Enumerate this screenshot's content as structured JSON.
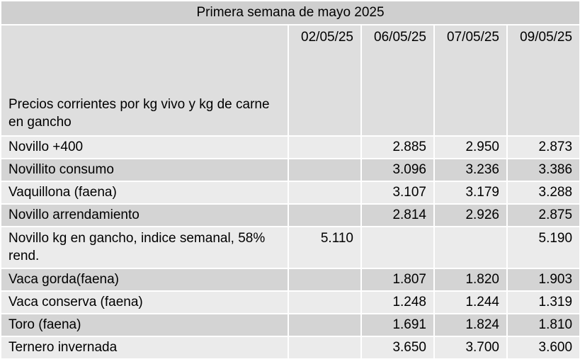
{
  "table": {
    "title": "Primera semana de mayo 2025",
    "header_label": "Precios corrientes  por kg vivo y kg de carne en gancho",
    "dates": [
      "02/05/25",
      "06/05/25",
      "07/05/25",
      "09/05/25"
    ],
    "rows": [
      {
        "label": "Novillo +400",
        "values": [
          "",
          "2.885",
          "2.950",
          "2.873"
        ]
      },
      {
        "label": "Novillito consumo",
        "values": [
          "",
          "3.096",
          "3.236",
          "3.386"
        ]
      },
      {
        "label": "Vaquillona (faena)",
        "values": [
          "",
          "3.107",
          "3.179",
          "3.288"
        ]
      },
      {
        "label": "Novillo arrendamiento",
        "values": [
          "",
          "2.814",
          "2.926",
          "2.875"
        ]
      },
      {
        "label": "Novillo kg en gancho, indice semanal, 58% rend.",
        "values": [
          "5.110",
          "",
          "",
          "5.190"
        ]
      },
      {
        "label": "Vaca gorda(faena)",
        "values": [
          "",
          "1.807",
          "1.820",
          "1.903"
        ]
      },
      {
        "label": "Vaca conserva (faena)",
        "values": [
          "",
          "1.248",
          "1.244",
          "1.319"
        ]
      },
      {
        "label": "Toro (faena)",
        "values": [
          "",
          "1.691",
          "1.824",
          "1.810"
        ]
      },
      {
        "label": "Ternero invernada",
        "values": [
          "",
          "3.650",
          "3.700",
          "3.600"
        ]
      }
    ]
  }
}
